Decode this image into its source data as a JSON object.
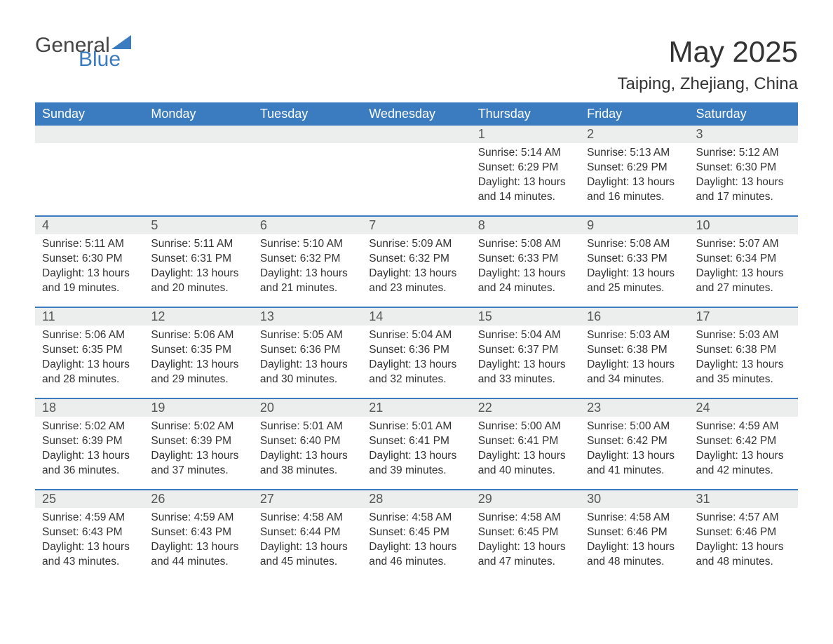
{
  "logo": {
    "word1": "General",
    "word2": "Blue"
  },
  "title": "May 2025",
  "location": "Taiping, Zhejiang, China",
  "colors": {
    "header_bg": "#3b7bbf",
    "header_text": "#ffffff",
    "daynum_bg": "#eceded",
    "border": "#3b7bbf",
    "text": "#333333",
    "logo_blue": "#3b7bbf",
    "logo_gray": "#444444",
    "page_bg": "#ffffff"
  },
  "typography": {
    "title_fontsize": 42,
    "location_fontsize": 24,
    "header_fontsize": 18,
    "daynum_fontsize": 18,
    "body_fontsize": 15.5,
    "font_family": "Segoe UI"
  },
  "day_headers": [
    "Sunday",
    "Monday",
    "Tuesday",
    "Wednesday",
    "Thursday",
    "Friday",
    "Saturday"
  ],
  "weeks": [
    [
      {
        "n": "",
        "sunrise": "",
        "sunset": "",
        "daylight": ""
      },
      {
        "n": "",
        "sunrise": "",
        "sunset": "",
        "daylight": ""
      },
      {
        "n": "",
        "sunrise": "",
        "sunset": "",
        "daylight": ""
      },
      {
        "n": "",
        "sunrise": "",
        "sunset": "",
        "daylight": ""
      },
      {
        "n": "1",
        "sunrise": "Sunrise: 5:14 AM",
        "sunset": "Sunset: 6:29 PM",
        "daylight": "Daylight: 13 hours and 14 minutes."
      },
      {
        "n": "2",
        "sunrise": "Sunrise: 5:13 AM",
        "sunset": "Sunset: 6:29 PM",
        "daylight": "Daylight: 13 hours and 16 minutes."
      },
      {
        "n": "3",
        "sunrise": "Sunrise: 5:12 AM",
        "sunset": "Sunset: 6:30 PM",
        "daylight": "Daylight: 13 hours and 17 minutes."
      }
    ],
    [
      {
        "n": "4",
        "sunrise": "Sunrise: 5:11 AM",
        "sunset": "Sunset: 6:30 PM",
        "daylight": "Daylight: 13 hours and 19 minutes."
      },
      {
        "n": "5",
        "sunrise": "Sunrise: 5:11 AM",
        "sunset": "Sunset: 6:31 PM",
        "daylight": "Daylight: 13 hours and 20 minutes."
      },
      {
        "n": "6",
        "sunrise": "Sunrise: 5:10 AM",
        "sunset": "Sunset: 6:32 PM",
        "daylight": "Daylight: 13 hours and 21 minutes."
      },
      {
        "n": "7",
        "sunrise": "Sunrise: 5:09 AM",
        "sunset": "Sunset: 6:32 PM",
        "daylight": "Daylight: 13 hours and 23 minutes."
      },
      {
        "n": "8",
        "sunrise": "Sunrise: 5:08 AM",
        "sunset": "Sunset: 6:33 PM",
        "daylight": "Daylight: 13 hours and 24 minutes."
      },
      {
        "n": "9",
        "sunrise": "Sunrise: 5:08 AM",
        "sunset": "Sunset: 6:33 PM",
        "daylight": "Daylight: 13 hours and 25 minutes."
      },
      {
        "n": "10",
        "sunrise": "Sunrise: 5:07 AM",
        "sunset": "Sunset: 6:34 PM",
        "daylight": "Daylight: 13 hours and 27 minutes."
      }
    ],
    [
      {
        "n": "11",
        "sunrise": "Sunrise: 5:06 AM",
        "sunset": "Sunset: 6:35 PM",
        "daylight": "Daylight: 13 hours and 28 minutes."
      },
      {
        "n": "12",
        "sunrise": "Sunrise: 5:06 AM",
        "sunset": "Sunset: 6:35 PM",
        "daylight": "Daylight: 13 hours and 29 minutes."
      },
      {
        "n": "13",
        "sunrise": "Sunrise: 5:05 AM",
        "sunset": "Sunset: 6:36 PM",
        "daylight": "Daylight: 13 hours and 30 minutes."
      },
      {
        "n": "14",
        "sunrise": "Sunrise: 5:04 AM",
        "sunset": "Sunset: 6:36 PM",
        "daylight": "Daylight: 13 hours and 32 minutes."
      },
      {
        "n": "15",
        "sunrise": "Sunrise: 5:04 AM",
        "sunset": "Sunset: 6:37 PM",
        "daylight": "Daylight: 13 hours and 33 minutes."
      },
      {
        "n": "16",
        "sunrise": "Sunrise: 5:03 AM",
        "sunset": "Sunset: 6:38 PM",
        "daylight": "Daylight: 13 hours and 34 minutes."
      },
      {
        "n": "17",
        "sunrise": "Sunrise: 5:03 AM",
        "sunset": "Sunset: 6:38 PM",
        "daylight": "Daylight: 13 hours and 35 minutes."
      }
    ],
    [
      {
        "n": "18",
        "sunrise": "Sunrise: 5:02 AM",
        "sunset": "Sunset: 6:39 PM",
        "daylight": "Daylight: 13 hours and 36 minutes."
      },
      {
        "n": "19",
        "sunrise": "Sunrise: 5:02 AM",
        "sunset": "Sunset: 6:39 PM",
        "daylight": "Daylight: 13 hours and 37 minutes."
      },
      {
        "n": "20",
        "sunrise": "Sunrise: 5:01 AM",
        "sunset": "Sunset: 6:40 PM",
        "daylight": "Daylight: 13 hours and 38 minutes."
      },
      {
        "n": "21",
        "sunrise": "Sunrise: 5:01 AM",
        "sunset": "Sunset: 6:41 PM",
        "daylight": "Daylight: 13 hours and 39 minutes."
      },
      {
        "n": "22",
        "sunrise": "Sunrise: 5:00 AM",
        "sunset": "Sunset: 6:41 PM",
        "daylight": "Daylight: 13 hours and 40 minutes."
      },
      {
        "n": "23",
        "sunrise": "Sunrise: 5:00 AM",
        "sunset": "Sunset: 6:42 PM",
        "daylight": "Daylight: 13 hours and 41 minutes."
      },
      {
        "n": "24",
        "sunrise": "Sunrise: 4:59 AM",
        "sunset": "Sunset: 6:42 PM",
        "daylight": "Daylight: 13 hours and 42 minutes."
      }
    ],
    [
      {
        "n": "25",
        "sunrise": "Sunrise: 4:59 AM",
        "sunset": "Sunset: 6:43 PM",
        "daylight": "Daylight: 13 hours and 43 minutes."
      },
      {
        "n": "26",
        "sunrise": "Sunrise: 4:59 AM",
        "sunset": "Sunset: 6:43 PM",
        "daylight": "Daylight: 13 hours and 44 minutes."
      },
      {
        "n": "27",
        "sunrise": "Sunrise: 4:58 AM",
        "sunset": "Sunset: 6:44 PM",
        "daylight": "Daylight: 13 hours and 45 minutes."
      },
      {
        "n": "28",
        "sunrise": "Sunrise: 4:58 AM",
        "sunset": "Sunset: 6:45 PM",
        "daylight": "Daylight: 13 hours and 46 minutes."
      },
      {
        "n": "29",
        "sunrise": "Sunrise: 4:58 AM",
        "sunset": "Sunset: 6:45 PM",
        "daylight": "Daylight: 13 hours and 47 minutes."
      },
      {
        "n": "30",
        "sunrise": "Sunrise: 4:58 AM",
        "sunset": "Sunset: 6:46 PM",
        "daylight": "Daylight: 13 hours and 48 minutes."
      },
      {
        "n": "31",
        "sunrise": "Sunrise: 4:57 AM",
        "sunset": "Sunset: 6:46 PM",
        "daylight": "Daylight: 13 hours and 48 minutes."
      }
    ]
  ]
}
